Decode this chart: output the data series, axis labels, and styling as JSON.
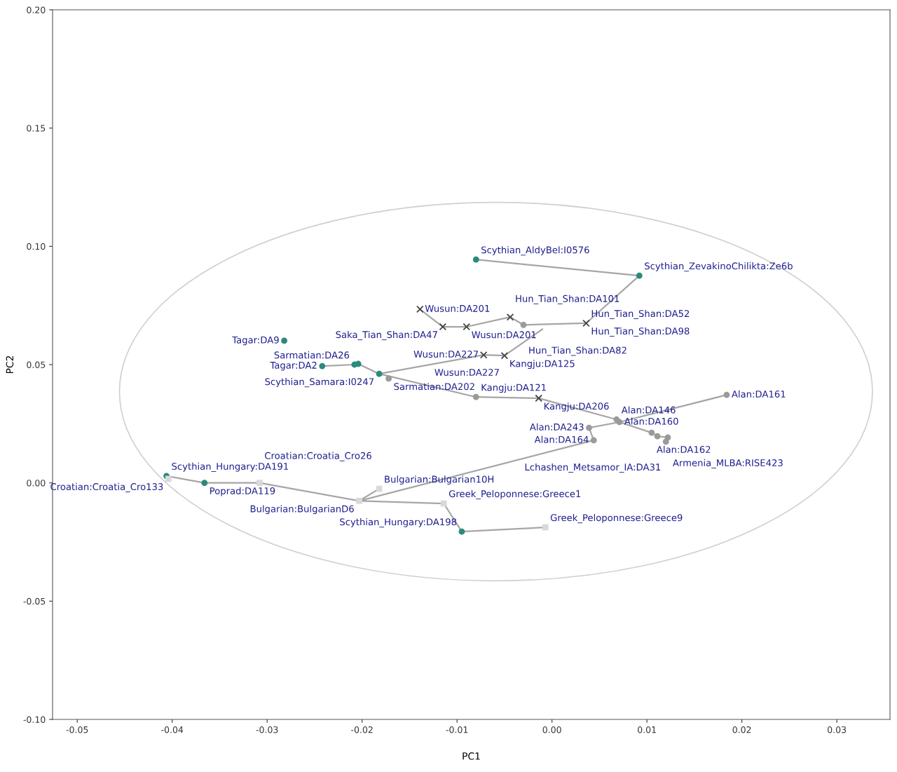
{
  "chart_data": {
    "type": "scatter",
    "xlabel": "PC1",
    "ylabel": "PC2",
    "xlim": [
      -0.0526,
      0.0356
    ],
    "ylim": [
      -0.1,
      0.2
    ],
    "xticks": [
      {
        "value": -0.05,
        "label": "-0.05"
      },
      {
        "value": -0.04,
        "label": "-0.04"
      },
      {
        "value": -0.03,
        "label": "-0.03"
      },
      {
        "value": -0.02,
        "label": "-0.02"
      },
      {
        "value": -0.01,
        "label": "-0.01"
      },
      {
        "value": 0.0,
        "label": "0.00"
      },
      {
        "value": 0.01,
        "label": "0.01"
      },
      {
        "value": 0.02,
        "label": "0.02"
      },
      {
        "value": 0.03,
        "label": "0.03"
      }
    ],
    "yticks": [
      {
        "value": -0.1,
        "label": "-0.10"
      },
      {
        "value": -0.05,
        "label": "-0.05"
      },
      {
        "value": 0.0,
        "label": "0.00"
      },
      {
        "value": 0.05,
        "label": "0.05"
      },
      {
        "value": 0.1,
        "label": "0.10"
      },
      {
        "value": 0.15,
        "label": "0.15"
      },
      {
        "value": 0.2,
        "label": "0.20"
      }
    ],
    "grid": false,
    "legend": false,
    "series": [
      {
        "type": "line",
        "color": "#a6a6a6",
        "marker": "none",
        "line_style": "solid",
        "x": [
          -0.008,
          0.0092,
          0.0036,
          -0.003,
          -0.0044,
          -0.009,
          -0.0115,
          -0.0139,
          null,
          -0.0242,
          -0.0208,
          -0.0204,
          -0.0182,
          -0.0072,
          -0.005,
          -0.001,
          null,
          -0.0182,
          -0.008,
          -0.0014,
          0.0068,
          0.0071,
          0.0184,
          null,
          0.0071,
          0.0105,
          0.0111,
          0.0122,
          null,
          0.0071,
          0.0039,
          0.0044,
          -0.0203,
          -0.0182,
          null,
          -0.0203,
          -0.0308,
          -0.0366,
          -0.0406,
          null,
          -0.0203,
          -0.0114,
          -0.0095,
          -0.0007
        ],
        "values": [
          0.0944,
          0.0876,
          0.0675,
          0.0668,
          0.0701,
          0.066,
          0.066,
          0.0734,
          null,
          0.0494,
          0.05,
          0.0503,
          0.0461,
          0.0541,
          0.0538,
          0.065,
          null,
          0.0461,
          0.0363,
          0.0358,
          0.0268,
          0.0257,
          0.0372,
          null,
          0.0257,
          0.0212,
          0.0197,
          0.0192,
          null,
          0.0257,
          0.0233,
          0.018,
          -0.0076,
          -0.0025,
          null,
          -0.0076,
          0.0,
          0.0,
          0.0029,
          null,
          -0.0076,
          -0.0087,
          -0.0206,
          -0.0188
        ]
      },
      {
        "color": "#2a8a7c",
        "marker": "circle",
        "x": [
          -0.008,
          0.0092,
          -0.0282,
          -0.0242,
          -0.0208,
          -0.0204,
          -0.0182,
          -0.0406,
          -0.0366,
          -0.0095
        ],
        "values": [
          0.0944,
          0.0876,
          0.0601,
          0.0494,
          0.05,
          0.0503,
          0.0461,
          0.0029,
          0.0,
          -0.0206
        ]
      },
      {
        "color": "#9a9a9a",
        "marker": "circle",
        "x": [
          -0.0172,
          -0.003,
          -0.008,
          0.0184,
          0.0068,
          0.0071,
          0.0039,
          0.0044,
          0.0105,
          0.0111,
          0.0122,
          0.012
        ],
        "values": [
          0.0441,
          0.0668,
          0.0363,
          0.0372,
          0.0268,
          0.0257,
          0.0233,
          0.018,
          0.0212,
          0.0197,
          0.0192,
          0.0174
        ]
      },
      {
        "color": "#444444",
        "marker": "cross",
        "x": [
          -0.0139,
          -0.0115,
          -0.009,
          -0.0044,
          0.0036,
          -0.0072,
          -0.005,
          -0.0014
        ],
        "values": [
          0.0734,
          0.066,
          0.066,
          0.0701,
          0.0675,
          0.0541,
          0.0538,
          0.0358
        ]
      },
      {
        "color": "#d9d9d9",
        "marker": "square",
        "x": [
          -0.0404,
          -0.0308,
          -0.0203,
          -0.0182,
          -0.0114,
          -0.0007
        ],
        "values": [
          0.0017,
          0.0,
          -0.0076,
          -0.0025,
          -0.0087,
          -0.0188
        ]
      }
    ],
    "annotations": [
      {
        "text": "Scythian_AldyBel:I0576",
        "x": -0.008,
        "y": 0.0944
      },
      {
        "text": "Scythian_ZevakinoChilikta:Ze6b",
        "x": 0.0092,
        "y": 0.0876
      },
      {
        "text": "Wusun:DA201",
        "x": -0.0139,
        "y": 0.0734
      },
      {
        "text": "Wusun:DA201",
        "x": -0.009,
        "y": 0.066
      },
      {
        "text": "Saka_Tian_Shan:DA47",
        "x": -0.0115,
        "y": 0.066
      },
      {
        "text": "Hun_Tian_Shan:DA52",
        "x": 0.0036,
        "y": 0.0675
      },
      {
        "text": "Hun_Tian_Shan:DA98",
        "x": 0.0036,
        "y": 0.0675
      },
      {
        "text": "Hun_Tian_Shan:DA101",
        "x": -0.0044,
        "y": 0.0701
      },
      {
        "text": "Hun_Tian_Shan:DA82",
        "x": -0.003,
        "y": 0.0668
      },
      {
        "text": "Tagar:DA9",
        "x": -0.0282,
        "y": 0.0601
      },
      {
        "text": "Sarmatian:DA26",
        "x": -0.0208,
        "y": 0.05
      },
      {
        "text": "Tagar:DA2",
        "x": -0.0242,
        "y": 0.0494
      },
      {
        "text": "Wusun:DA227",
        "x": -0.0072,
        "y": 0.0541
      },
      {
        "text": "Kangju:DA125",
        "x": -0.005,
        "y": 0.0538
      },
      {
        "text": "Wusun:DA227",
        "x": -0.005,
        "y": 0.0538
      },
      {
        "text": "Scythian_Samara:I0247",
        "x": -0.0182,
        "y": 0.0461
      },
      {
        "text": "Sarmatian:DA202",
        "x": -0.0172,
        "y": 0.0441
      },
      {
        "text": "Kangju:DA121",
        "x": -0.008,
        "y": 0.0363
      },
      {
        "text": "Kangju:DA206",
        "x": -0.0014,
        "y": 0.0358
      },
      {
        "text": "Alan:DA161",
        "x": 0.0184,
        "y": 0.0372
      },
      {
        "text": "Alan:DA146",
        "x": 0.0068,
        "y": 0.0268
      },
      {
        "text": "Alan:DA160",
        "x": 0.0071,
        "y": 0.0257
      },
      {
        "text": "Alan:DA243",
        "x": 0.0039,
        "y": 0.0233
      },
      {
        "text": "Alan:DA164",
        "x": 0.0044,
        "y": 0.018
      },
      {
        "text": "Alan:DA162",
        "x": 0.0105,
        "y": 0.0212
      },
      {
        "text": "Armenia_MLBA:RISE423",
        "x": 0.0122,
        "y": 0.0192
      },
      {
        "text": "Lchashen_Metsamor_IA:DA31",
        "x": 0.012,
        "y": 0.0174
      },
      {
        "text": "Scythian_Hungary:DA191",
        "x": -0.0406,
        "y": 0.0029
      },
      {
        "text": "Croatian:Croatia_Cro133",
        "x": -0.0404,
        "y": 0.0017
      },
      {
        "text": "Poprad:DA119",
        "x": -0.0366,
        "y": 0.0
      },
      {
        "text": "Croatian:Croatia_Cro26",
        "x": -0.0308,
        "y": 0.0
      },
      {
        "text": "Bulgarian:BulgarianD6",
        "x": -0.0203,
        "y": -0.0076
      },
      {
        "text": "Bulgarian:Bulgarian10H",
        "x": -0.0182,
        "y": -0.0025
      },
      {
        "text": "Greek_Peloponnese:Greece1",
        "x": -0.0114,
        "y": -0.0087
      },
      {
        "text": "Scythian_Hungary:DA198",
        "x": -0.0095,
        "y": -0.0206
      },
      {
        "text": "Greek_Peloponnese:Greece9",
        "x": -0.0007,
        "y": -0.0188
      }
    ]
  }
}
